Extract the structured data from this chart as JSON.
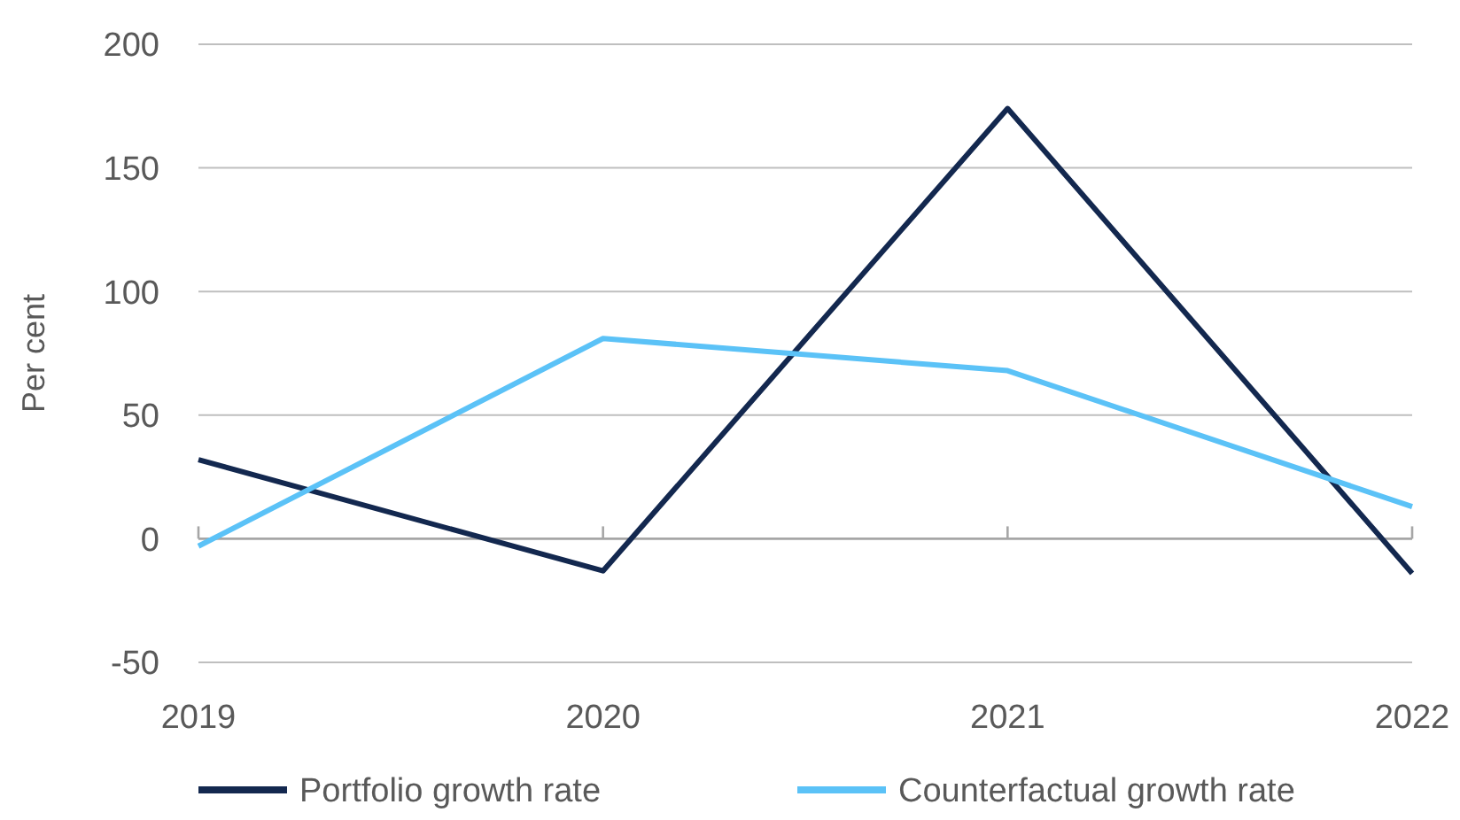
{
  "chart_data": {
    "type": "line",
    "ylabel": "Per cent",
    "categories": [
      "2019",
      "2020",
      "2021",
      "2022"
    ],
    "series": [
      {
        "name": "Portfolio growth rate",
        "color": "#13284f",
        "values": [
          32,
          -13,
          174,
          -14
        ]
      },
      {
        "name": "Counterfactual growth rate",
        "color": "#5bc2f7",
        "values": [
          -3,
          81,
          68,
          13
        ]
      }
    ],
    "ylim": [
      -50,
      200
    ],
    "yticks": [
      -50,
      0,
      50,
      100,
      150,
      200
    ],
    "grid": "y",
    "legend": "bottom",
    "marker": "none",
    "line_style": "solid"
  }
}
